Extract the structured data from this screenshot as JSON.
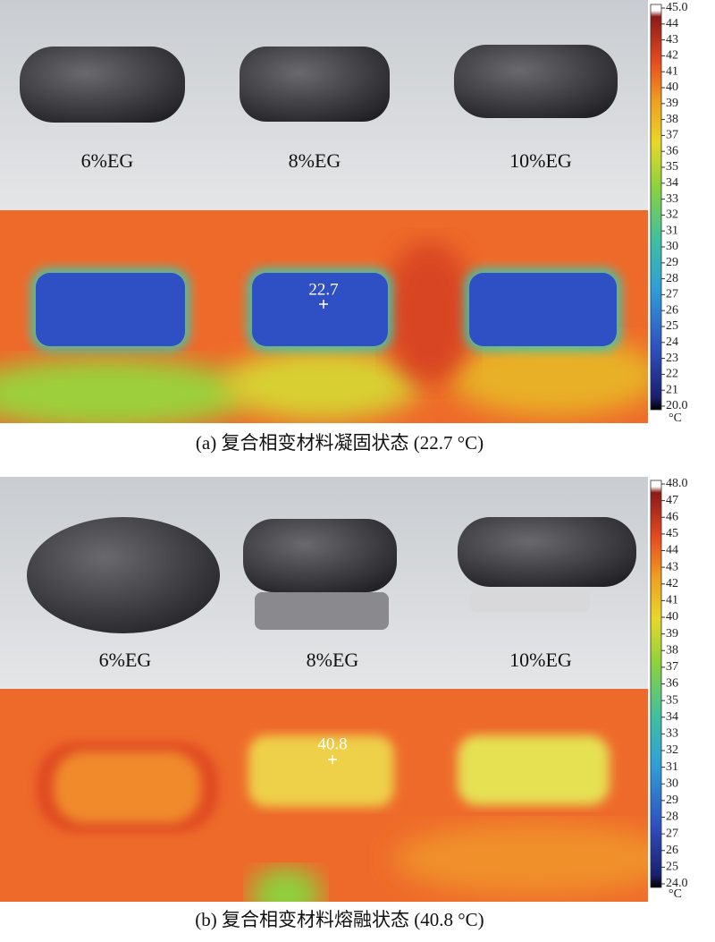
{
  "panels": [
    {
      "sample_labels": [
        "6%EG",
        "8%EG",
        "10%EG"
      ],
      "spot_reading": 22.7,
      "colorbar": {
        "ticks": [
          {
            "value": 20,
            "label": "20.0"
          },
          21,
          22,
          23,
          24,
          25,
          26,
          27,
          28,
          29,
          30,
          31,
          32,
          33,
          34,
          35,
          36,
          37,
          38,
          39,
          40,
          41,
          42,
          43,
          44,
          {
            "value": 45,
            "label": "45.0"
          }
        ],
        "unit": "°C"
      },
      "caption": "(a) 复合相变材料凝固状态 (22.7 °C)"
    },
    {
      "sample_labels": [
        "6%EG",
        "8%EG",
        "10%EG"
      ],
      "spot_reading": 40.8,
      "colorbar": {
        "ticks": [
          {
            "value": 24,
            "label": "24.0"
          },
          25,
          26,
          27,
          28,
          29,
          30,
          31,
          32,
          33,
          34,
          35,
          36,
          37,
          38,
          39,
          40,
          41,
          42,
          43,
          44,
          45,
          46,
          47,
          {
            "value": 48,
            "label": "48.0"
          }
        ],
        "unit": "°C"
      },
      "caption": "(b) 复合相变材料熔融状态 (40.8 °C)"
    }
  ]
}
